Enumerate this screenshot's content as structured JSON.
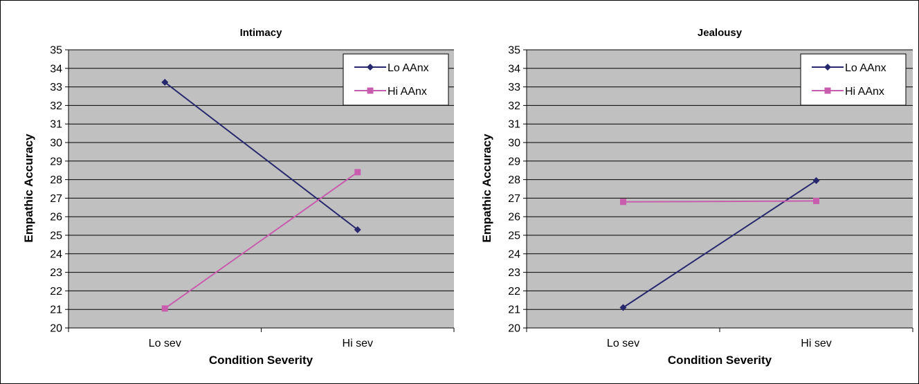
{
  "colors": {
    "lo": "#27276e",
    "hi": "#c85dae",
    "plot_bg": "#c0c0c0",
    "grid": "#000000"
  },
  "chart_data": [
    {
      "type": "line",
      "title": "Intimacy",
      "xlabel": "Condition Severity",
      "ylabel": "Empathic Accuracy",
      "categories": [
        "Lo sev",
        "Hi sev"
      ],
      "ylim": [
        20,
        35
      ],
      "yticks": [
        "20",
        "21",
        "22",
        "23",
        "24",
        "25",
        "26",
        "27",
        "28",
        "29",
        "30",
        "31",
        "32",
        "33",
        "34",
        "35"
      ],
      "grid": true,
      "legend_position": "top-right",
      "series": [
        {
          "name": "Lo AAnx",
          "marker": "diamond",
          "values": [
            33.25,
            25.3
          ]
        },
        {
          "name": "Hi AAnx",
          "marker": "square",
          "values": [
            21.05,
            28.4
          ]
        }
      ]
    },
    {
      "type": "line",
      "title": "Jealousy",
      "xlabel": "Condition Severity",
      "ylabel": "Empathic Accuracy",
      "categories": [
        "Lo sev",
        "Hi sev"
      ],
      "ylim": [
        20,
        35
      ],
      "yticks": [
        "20",
        "21",
        "22",
        "23",
        "24",
        "25",
        "26",
        "27",
        "28",
        "29",
        "30",
        "31",
        "32",
        "33",
        "34",
        "35"
      ],
      "grid": true,
      "legend_position": "top-right",
      "series": [
        {
          "name": "Lo AAnx",
          "marker": "diamond",
          "values": [
            21.1,
            27.95
          ]
        },
        {
          "name": "Hi AAnx",
          "marker": "square",
          "values": [
            26.8,
            26.85
          ]
        }
      ]
    }
  ]
}
